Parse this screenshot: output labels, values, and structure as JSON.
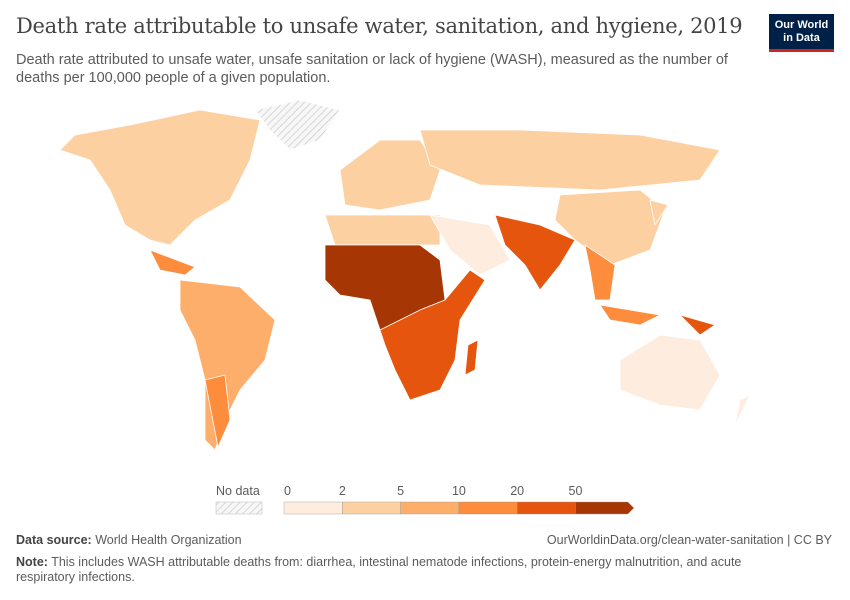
{
  "header": {
    "title": "Death rate attributable to unsafe water, sanitation, and hygiene, 2019",
    "subtitle": "Death rate attributed to unsafe water, unsafe sanitation or lack of hygiene (WASH), measured as the number of deaths per 100,000 people of a given population.",
    "logo_line1": "Our World",
    "logo_line2": "in Data"
  },
  "legend": {
    "no_data_label": "No data",
    "ticks": [
      "0",
      "2",
      "5",
      "10",
      "20",
      "50"
    ],
    "colors": [
      "#feeddf",
      "#fdd0a2",
      "#fdae6b",
      "#fd8d3c",
      "#e6550d",
      "#a63603"
    ]
  },
  "colors": {
    "border": "#ffffff",
    "no_data": "#eeeeee",
    "ocean": "#ffffff"
  },
  "footer": {
    "source_label": "Data source:",
    "source": "World Health Organization",
    "url": "OurWorldinData.org/clean-water-sanitation | CC BY",
    "note_label": "Note:",
    "note": "This includes WASH attributable deaths from: diarrhea, intestinal nematode infections, protein-energy malnutrition, and acute respiratory infections."
  }
}
